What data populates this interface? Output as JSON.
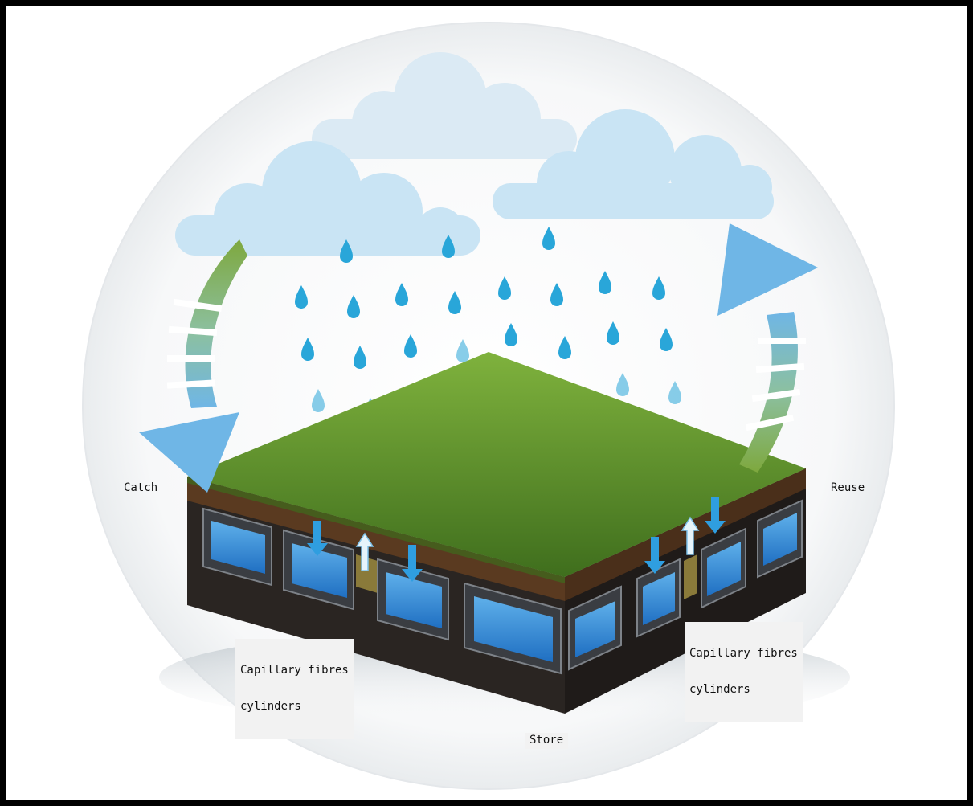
{
  "labels": {
    "catch": "Catch",
    "reuse": "Reuse",
    "fibres_left": {
      "line1": "Capillary fibres",
      "line2": "cylinders"
    },
    "fibres_right": {
      "line1": "Capillary fibres",
      "line2": "cylinders"
    },
    "store": "Store"
  },
  "colors": {
    "frame": "#000000",
    "circle_bg": "#f4f6f7",
    "cloud": "#c9e4f4",
    "cloud_back": "#dbeaf4",
    "raindrop": "#29a6d9",
    "grass": "#5b8f2c",
    "soil": "#5a3a20",
    "crate": "#3a3d42",
    "water": "#2f89d6",
    "arrow_green": "#7aa440",
    "arrow_blue": "#6fb6e6"
  },
  "icons": [
    "cloud-icon",
    "raindrop-icon",
    "catch-arrow-icon",
    "reuse-arrow-icon",
    "down-arrow-icon",
    "up-arrow-icon"
  ]
}
